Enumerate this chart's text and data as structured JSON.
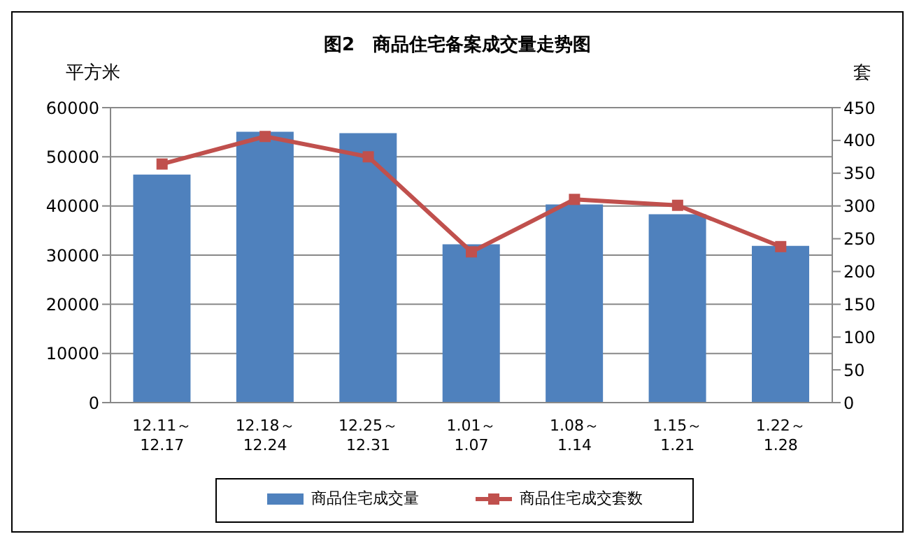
{
  "chart_data": {
    "type": "bar",
    "title": "图2　商品住宅备案成交量走势图",
    "ylabel": "平方米",
    "y2label": "套",
    "categories": [
      "12.11～\n12.17",
      "12.18～\n12.24",
      "12.25～\n12.31",
      "1.01～\n1.07",
      "1.08～\n1.14",
      "1.15～\n1.21",
      "1.22～\n1.28"
    ],
    "series": [
      {
        "name": "商品住宅成交量",
        "color": "#4f81bd",
        "values": [
          46400,
          55100,
          54800,
          32200,
          40300,
          38300,
          31900
        ]
      },
      {
        "name": "商品住宅成交套数",
        "type": "line",
        "axis": "y2",
        "color": "#c0504d",
        "marker": "square",
        "values": [
          364,
          406,
          375,
          230,
          310,
          301,
          238
        ]
      }
    ],
    "ylim": [
      0,
      60000
    ],
    "yticks": [
      0,
      10000,
      20000,
      30000,
      40000,
      50000,
      60000
    ],
    "y2lim": [
      0,
      450
    ],
    "y2ticks": [
      0,
      50,
      100,
      150,
      200,
      250,
      300,
      350,
      400,
      450
    ],
    "grid": "y",
    "legend": "bottom"
  }
}
